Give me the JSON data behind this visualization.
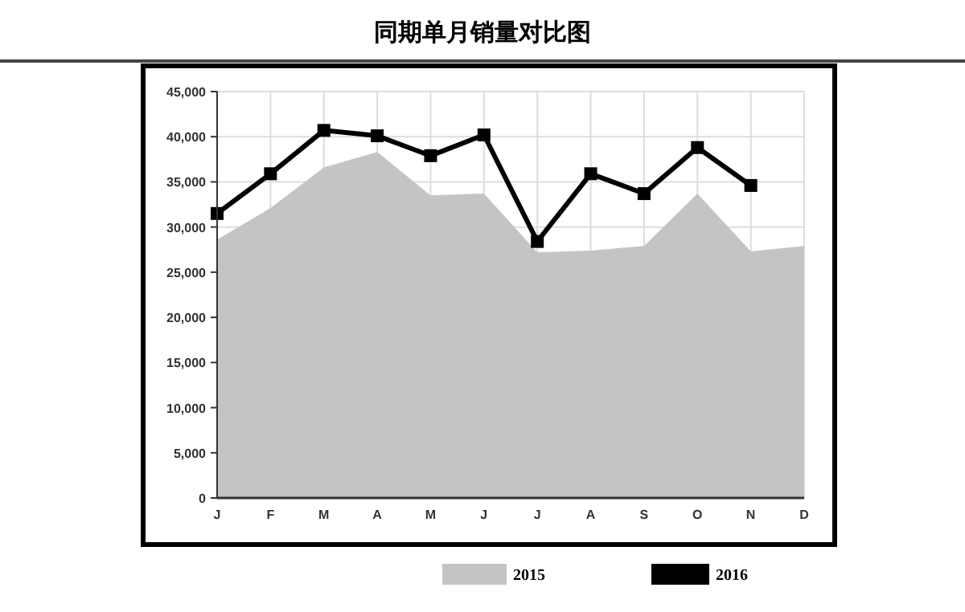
{
  "chart_data": {
    "type": "area",
    "title": "同期单月销量对比图",
    "categories": [
      "J",
      "F",
      "M",
      "A",
      "M",
      "J",
      "J",
      "A",
      "S",
      "O",
      "N",
      "D"
    ],
    "series": [
      {
        "name": "2015",
        "color": "#c4c4c4",
        "values": [
          28600,
          32100,
          36600,
          38300,
          33500,
          33700,
          27200,
          27400,
          27900,
          33700,
          27300,
          27900
        ]
      },
      {
        "name": "2016",
        "type": "line",
        "color": "#000000",
        "marker": "square",
        "values": [
          31500,
          35900,
          40700,
          40100,
          37900,
          40200,
          28400,
          35900,
          33700,
          38800,
          34600,
          null
        ]
      }
    ],
    "ylim": [
      0,
      45000
    ],
    "yticks": [
      0,
      {
        "value": 5000,
        "label": "5,000"
      },
      {
        "value": 10000,
        "label": "10,000"
      },
      {
        "value": 15000,
        "label": "15,000"
      },
      {
        "value": 20000,
        "label": "20,000"
      },
      {
        "value": 25000,
        "label": "25,000"
      },
      {
        "value": 30000,
        "label": "30,000"
      },
      {
        "value": 35000,
        "label": "35,000"
      },
      {
        "value": 40000,
        "label": "40,000"
      },
      {
        "value": 45000,
        "label": "45,000"
      }
    ],
    "grid": true,
    "legend": "bottom"
  }
}
